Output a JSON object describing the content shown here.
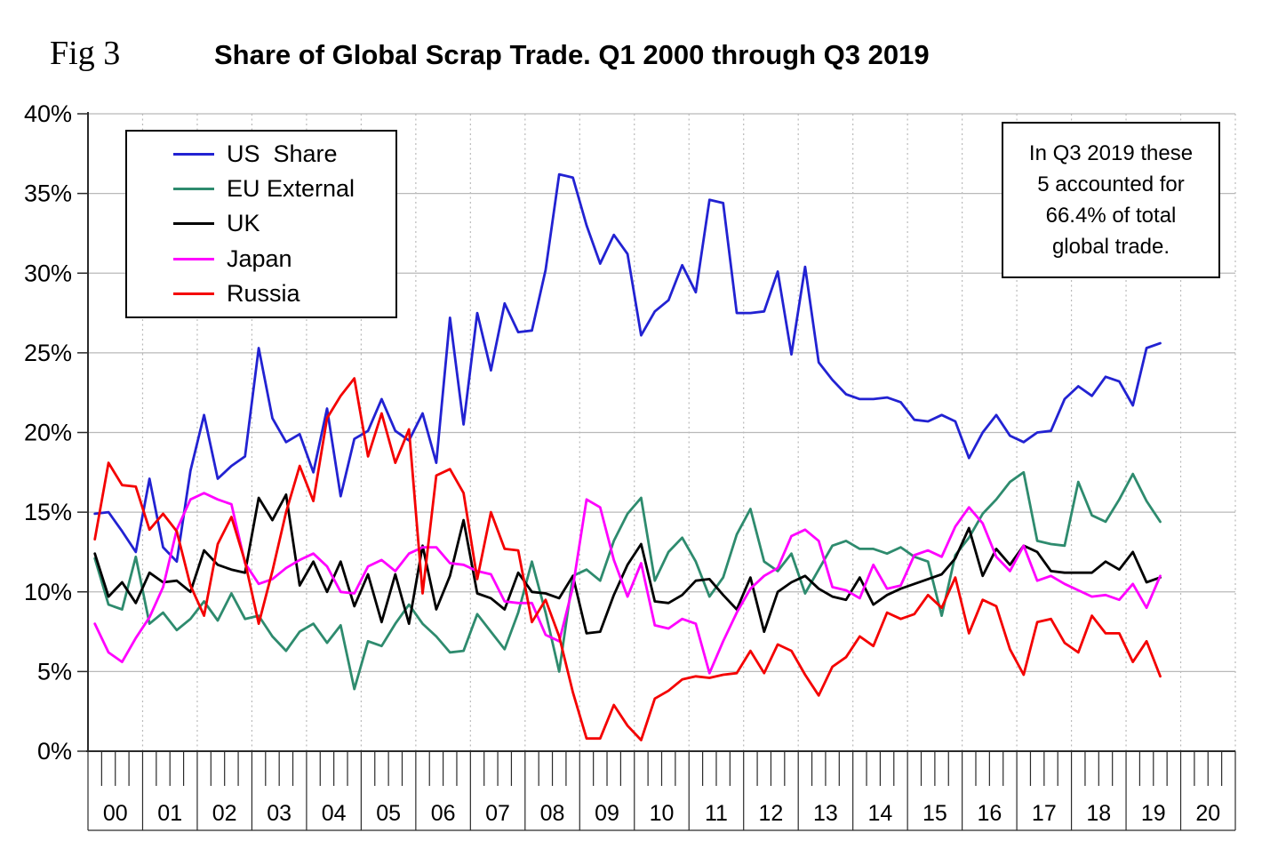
{
  "fig_label": "Fig 3",
  "title": "Share of Global Scrap Trade. Q1 2000 through Q3 2019",
  "annotation": {
    "lines": [
      "In Q3 2019 these",
      "5 accounted for",
      "66.4% of total",
      "global trade."
    ]
  },
  "legend": {
    "entries": [
      {
        "label": "US  Share",
        "color": "#2222d2"
      },
      {
        "label": "EU External",
        "color": "#2e8b6e"
      },
      {
        "label": "UK",
        "color": "#000000"
      },
      {
        "label": "Japan",
        "color": "#ff00ff"
      },
      {
        "label": "Russia",
        "color": "#f40000"
      }
    ]
  },
  "chart_data": {
    "type": "line",
    "title": "Share of Global Scrap Trade. Q1 2000 through Q3 2019",
    "frequency": "quarterly",
    "x_start": "2000Q1",
    "x_end": "2019Q3",
    "xlabel": "",
    "ylabel": "",
    "ylim": [
      0,
      40
    ],
    "ytick_step": 5,
    "ytick_labels": [
      "0%",
      "5%",
      "10%",
      "15%",
      "20%",
      "25%",
      "30%",
      "35%",
      "40%"
    ],
    "year_labels": [
      "00",
      "01",
      "02",
      "03",
      "04",
      "05",
      "06",
      "07",
      "08",
      "09",
      "10",
      "11",
      "12",
      "13",
      "14",
      "15",
      "16",
      "17",
      "18",
      "19",
      "20"
    ],
    "grid": {
      "horizontal": "solid",
      "vertical": "dotted-at-year-boundaries"
    },
    "legend_position": "upper-left-inside",
    "series": [
      {
        "name": "US Share",
        "color": "#2222d2",
        "values": [
          14.9,
          15.0,
          13.8,
          12.5,
          17.1,
          12.8,
          11.9,
          17.6,
          21.1,
          17.1,
          17.9,
          18.5,
          25.3,
          20.9,
          19.4,
          19.9,
          17.5,
          21.5,
          16.0,
          19.6,
          20.1,
          22.1,
          20.1,
          19.5,
          21.2,
          18.1,
          27.2,
          20.5,
          27.5,
          23.9,
          28.1,
          26.3,
          26.4,
          30.2,
          36.2,
          36.0,
          33.0,
          30.6,
          32.4,
          31.2,
          26.1,
          27.6,
          28.3,
          30.5,
          28.8,
          34.6,
          34.4,
          27.5,
          27.5,
          27.6,
          30.1,
          24.9,
          30.4,
          24.4,
          23.3,
          22.4,
          22.1,
          22.1,
          22.2,
          21.9,
          20.8,
          20.7,
          21.1,
          20.7,
          18.4,
          20.0,
          21.1,
          19.8,
          19.4,
          20.0,
          20.1,
          22.1,
          22.9,
          22.3,
          23.5,
          23.2,
          21.7,
          25.3,
          25.6
        ]
      },
      {
        "name": "EU External",
        "color": "#2e8b6e",
        "values": [
          12.1,
          9.2,
          8.9,
          12.2,
          8.0,
          8.7,
          7.6,
          8.3,
          9.4,
          8.2,
          9.9,
          8.3,
          8.5,
          7.2,
          6.3,
          7.5,
          8.0,
          6.8,
          7.9,
          3.9,
          6.9,
          6.6,
          8.0,
          9.2,
          8.0,
          7.2,
          6.2,
          6.3,
          8.6,
          7.5,
          6.4,
          8.7,
          11.9,
          8.7,
          5.0,
          11.0,
          11.4,
          10.7,
          13.2,
          14.9,
          15.9,
          10.7,
          12.5,
          13.4,
          11.9,
          9.7,
          10.9,
          13.6,
          15.2,
          11.9,
          11.3,
          12.4,
          9.9,
          11.4,
          12.9,
          13.2,
          12.7,
          12.7,
          12.4,
          12.8,
          12.2,
          11.9,
          8.5,
          12.3,
          13.4,
          14.9,
          15.8,
          16.9,
          17.5,
          13.2,
          13.0,
          12.9,
          16.9,
          14.8,
          14.4,
          15.8,
          17.4,
          15.7,
          14.4
        ]
      },
      {
        "name": "UK",
        "color": "#000000",
        "values": [
          12.4,
          9.7,
          10.6,
          9.3,
          11.2,
          10.6,
          10.7,
          10.0,
          12.6,
          11.7,
          11.4,
          11.2,
          15.9,
          14.5,
          16.1,
          10.4,
          11.9,
          10.0,
          11.9,
          9.1,
          11.1,
          8.1,
          11.1,
          8.0,
          12.9,
          8.9,
          11.0,
          14.5,
          9.9,
          9.6,
          8.9,
          11.2,
          10.0,
          9.9,
          9.6,
          11.0,
          7.4,
          7.5,
          9.8,
          11.7,
          13.0,
          9.4,
          9.3,
          9.8,
          10.7,
          10.8,
          9.8,
          8.9,
          10.9,
          7.5,
          10.0,
          10.6,
          11.0,
          10.2,
          9.7,
          9.5,
          10.9,
          9.2,
          9.8,
          10.2,
          10.5,
          10.8,
          11.1,
          12.1,
          14.0,
          11.0,
          12.7,
          11.7,
          12.9,
          12.5,
          11.3,
          11.2,
          11.2,
          11.2,
          11.9,
          11.4,
          12.5,
          10.6,
          10.9
        ]
      },
      {
        "name": "Japan",
        "color": "#ff00ff",
        "values": [
          8.0,
          6.2,
          5.6,
          7.1,
          8.4,
          10.3,
          13.9,
          15.8,
          16.2,
          15.8,
          15.5,
          11.8,
          10.5,
          10.8,
          11.5,
          12.0,
          12.4,
          11.6,
          10.0,
          9.9,
          11.6,
          12.0,
          11.3,
          12.4,
          12.8,
          12.8,
          11.8,
          11.7,
          11.3,
          11.1,
          9.4,
          9.3,
          9.3,
          7.3,
          6.9,
          10.3,
          15.8,
          15.3,
          12.0,
          9.7,
          11.8,
          7.9,
          7.7,
          8.3,
          8.0,
          4.9,
          6.9,
          8.7,
          10.2,
          11.0,
          11.5,
          13.5,
          13.9,
          13.2,
          10.3,
          10.1,
          9.6,
          11.7,
          10.2,
          10.4,
          12.3,
          12.6,
          12.2,
          14.1,
          15.3,
          14.3,
          12.2,
          11.3,
          12.9,
          10.7,
          11.0,
          10.5,
          10.1,
          9.7,
          9.8,
          9.5,
          10.5,
          9.0,
          11.0
        ]
      },
      {
        "name": "Russia",
        "color": "#f40000",
        "values": [
          13.3,
          18.1,
          16.7,
          16.6,
          13.9,
          14.9,
          13.8,
          10.4,
          8.5,
          13.0,
          14.7,
          11.9,
          8.0,
          11.3,
          15.0,
          17.9,
          15.7,
          20.9,
          22.3,
          23.4,
          18.5,
          21.2,
          18.1,
          20.2,
          9.9,
          17.3,
          17.7,
          16.2,
          10.8,
          15.0,
          12.7,
          12.6,
          8.1,
          9.5,
          7.2,
          3.7,
          0.8,
          0.8,
          2.9,
          1.6,
          0.7,
          3.3,
          3.8,
          4.5,
          4.7,
          4.6,
          4.8,
          4.9,
          6.3,
          4.9,
          6.7,
          6.3,
          4.8,
          3.5,
          5.3,
          5.9,
          7.2,
          6.6,
          8.7,
          8.3,
          8.6,
          9.8,
          9.0,
          10.9,
          7.4,
          9.5,
          9.1,
          6.4,
          4.8,
          8.1,
          8.3,
          6.8,
          6.2,
          8.5,
          7.4,
          7.4,
          5.6,
          6.9,
          4.7
        ]
      }
    ]
  },
  "colors": {
    "grid": "#b9b9b9",
    "axis": "#2a2a2a",
    "text": "#000000",
    "background": "#ffffff"
  }
}
